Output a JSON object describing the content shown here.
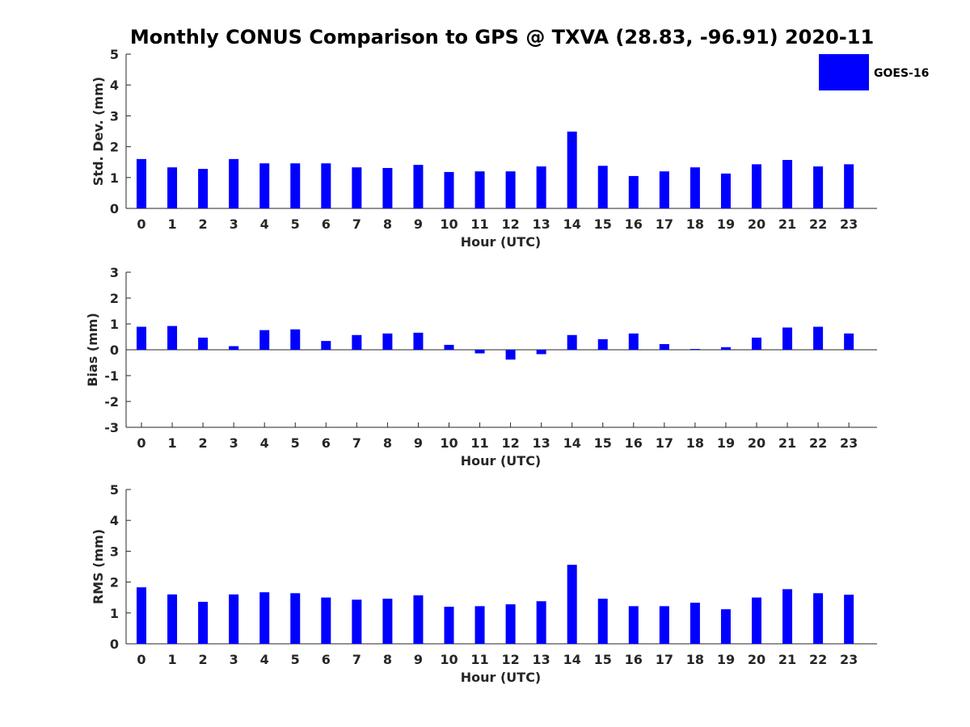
{
  "figure_title": "Monthly CONUS Comparison to GPS @ TXVA (28.83, -96.91) 2020-11",
  "legend": {
    "label": "GOES-16",
    "color": "#0000ff",
    "placement": "top-right"
  },
  "colors": {
    "bar": "#0000ff",
    "axis": "#262626",
    "text": "#262626"
  },
  "chart_data": [
    {
      "type": "bar",
      "panel": "std-dev",
      "xlabel": "Hour (UTC)",
      "ylabel": "Std. Dev. (mm)",
      "ylim": [
        0,
        5
      ],
      "yticks": [
        "0",
        "1",
        "2",
        "3",
        "4",
        "5"
      ],
      "categories": [
        "0",
        "1",
        "2",
        "3",
        "4",
        "5",
        "6",
        "7",
        "8",
        "9",
        "10",
        "11",
        "12",
        "13",
        "14",
        "15",
        "16",
        "17",
        "18",
        "19",
        "20",
        "21",
        "22",
        "23"
      ],
      "series": [
        {
          "name": "GOES-16",
          "values": [
            1.6,
            1.33,
            1.28,
            1.6,
            1.46,
            1.46,
            1.46,
            1.33,
            1.31,
            1.41,
            1.18,
            1.2,
            1.2,
            1.36,
            2.49,
            1.38,
            1.05,
            1.2,
            1.33,
            1.13,
            1.43,
            1.57,
            1.36,
            1.43
          ]
        }
      ],
      "grid": false
    },
    {
      "type": "bar",
      "panel": "bias",
      "xlabel": "Hour (UTC)",
      "ylabel": "Bias (mm)",
      "ylim": [
        -3,
        3
      ],
      "yticks": [
        "-3",
        "-2",
        "-1",
        "0",
        "1",
        "2",
        "3"
      ],
      "categories": [
        "0",
        "1",
        "2",
        "3",
        "4",
        "5",
        "6",
        "7",
        "8",
        "9",
        "10",
        "11",
        "12",
        "13",
        "14",
        "15",
        "16",
        "17",
        "18",
        "19",
        "20",
        "21",
        "22",
        "23"
      ],
      "series": [
        {
          "name": "GOES-16",
          "values": [
            0.89,
            0.92,
            0.47,
            0.14,
            0.76,
            0.79,
            0.34,
            0.57,
            0.63,
            0.66,
            0.19,
            -0.14,
            -0.38,
            -0.17,
            0.57,
            0.41,
            0.63,
            0.22,
            0.03,
            0.1,
            0.47,
            0.86,
            0.89,
            0.63
          ]
        }
      ],
      "grid": false
    },
    {
      "type": "bar",
      "panel": "rms",
      "xlabel": "Hour (UTC)",
      "ylabel": "RMS (mm)",
      "ylim": [
        0,
        5
      ],
      "yticks": [
        "0",
        "1",
        "2",
        "3",
        "4",
        "5"
      ],
      "categories": [
        "0",
        "1",
        "2",
        "3",
        "4",
        "5",
        "6",
        "7",
        "8",
        "9",
        "10",
        "11",
        "12",
        "13",
        "14",
        "15",
        "16",
        "17",
        "18",
        "19",
        "20",
        "21",
        "22",
        "23"
      ],
      "series": [
        {
          "name": "GOES-16",
          "values": [
            1.83,
            1.6,
            1.36,
            1.6,
            1.67,
            1.64,
            1.5,
            1.43,
            1.46,
            1.57,
            1.2,
            1.22,
            1.28,
            1.38,
            2.56,
            1.46,
            1.22,
            1.22,
            1.33,
            1.12,
            1.5,
            1.77,
            1.64,
            1.59
          ]
        }
      ],
      "grid": false
    }
  ]
}
